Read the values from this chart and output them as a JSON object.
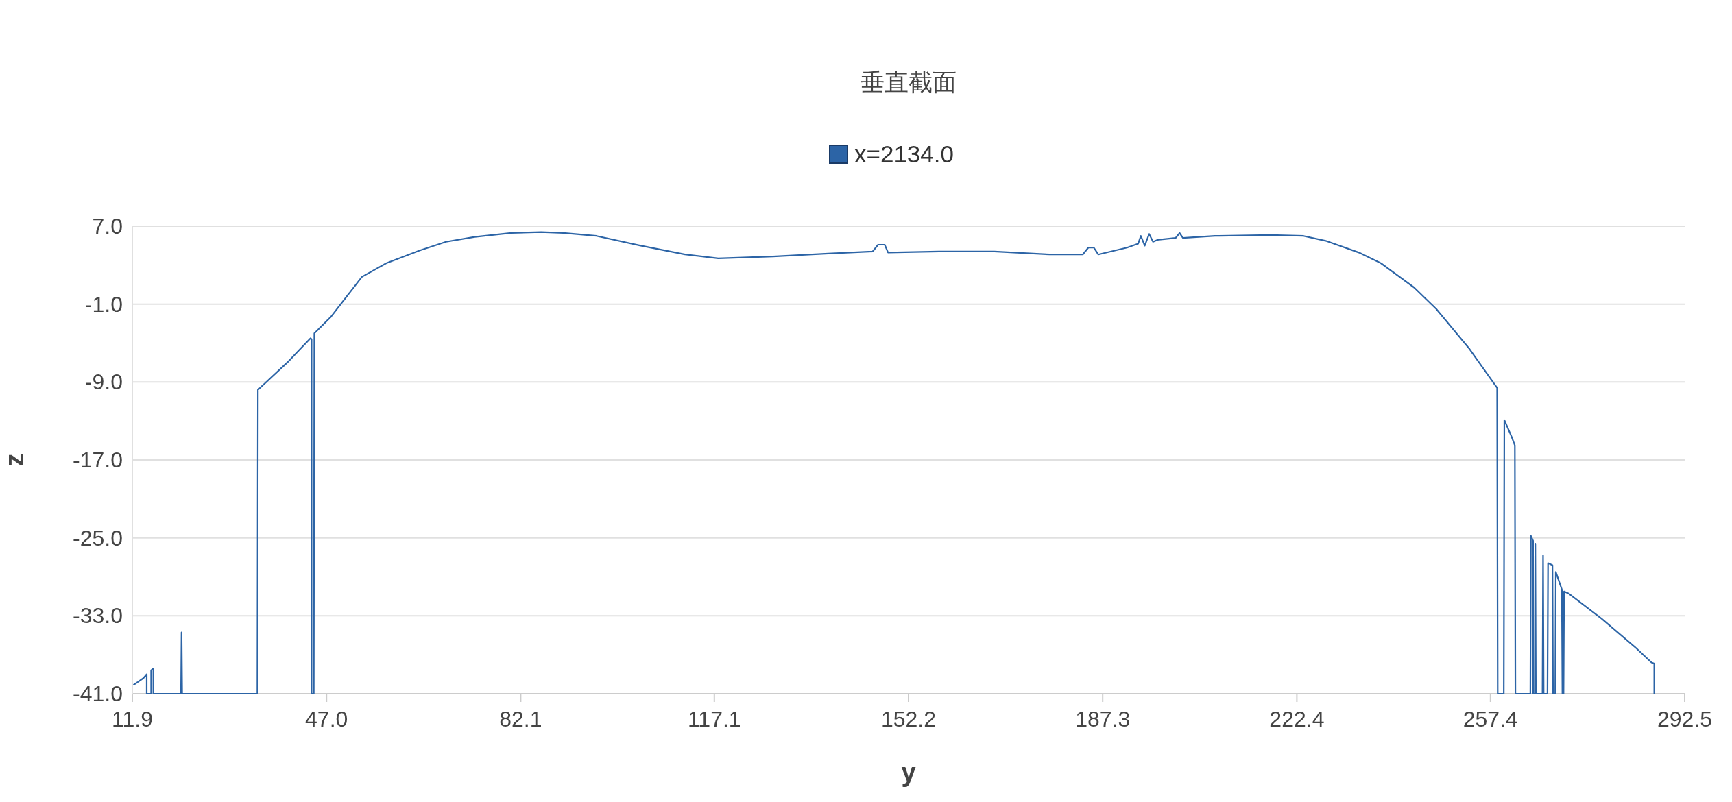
{
  "chart_data": {
    "type": "line",
    "title": "垂直截面",
    "xlabel": "y",
    "ylabel": "z",
    "legend": "top",
    "grid": "y",
    "xlim": [
      11.9,
      292.5
    ],
    "xticks": [
      11.9,
      {
        "value": 47,
        "label": "47.0"
      },
      82.1,
      117.1,
      152.2,
      187.3,
      222.4,
      257.4,
      292.5
    ],
    "ylim": [
      -41,
      7
    ],
    "yticks": [
      {
        "value": 7,
        "label": "7.0"
      },
      {
        "value": -1,
        "label": "-1.0"
      },
      {
        "value": -9,
        "label": "-9.0"
      },
      {
        "value": -17,
        "label": "-17.0"
      },
      {
        "value": -25,
        "label": "-25.0"
      },
      {
        "value": -33,
        "label": "-33.0"
      },
      {
        "value": -41,
        "label": "-41.0"
      }
    ],
    "series": [
      {
        "name": "x=2134.0",
        "color": "#2c64a6",
        "x": [
          12.1,
          12.9,
          13.9,
          14.5,
          14.5,
          15.3,
          15.3,
          15.7,
          15.7,
          20.7,
          20.8,
          20.9,
          34.5,
          34.6,
          39.9,
          44.1,
          44.3,
          44.3,
          44.7,
          44.8,
          47.8,
          53.4,
          57.8,
          63.8,
          68.6,
          73.8,
          80.4,
          85.8,
          89.8,
          95.8,
          103.8,
          111.8,
          117.8,
          127.7,
          137.7,
          145.7,
          146.7,
          147.9,
          148.5,
          157.7,
          167.7,
          177.7,
          183.7,
          184.7,
          185.7,
          186.5,
          191.7,
          193.7,
          194.2,
          194.9,
          195.7,
          196.4,
          197.2,
          200.5,
          201.2,
          201.8,
          207.6,
          217.6,
          223.6,
          227.6,
          233.6,
          237.6,
          243.6,
          247.6,
          253.6,
          258.6,
          258.7,
          259.8,
          259.9,
          261.2,
          261.8,
          261.9,
          264.6,
          264.7,
          265.1,
          265.1,
          265.4,
          265.5,
          265.6,
          266.8,
          266.9,
          267.0,
          267.7,
          267.8,
          268.6,
          268.7,
          269.1,
          269.2,
          270.3,
          270.4,
          270.6,
          270.7,
          271.5,
          277.5,
          283.5,
          286.5,
          287.0,
          287.0
        ],
        "values": [
          -40.1,
          -39.8,
          -39.4,
          -39.0,
          -41,
          -41,
          -38.6,
          -38.4,
          -41,
          -41,
          -34.7,
          -41,
          -41,
          -9.8,
          -7.0,
          -4.5,
          -4.6,
          -41,
          -41,
          -4.0,
          -2.3,
          1.8,
          3.2,
          4.5,
          5.4,
          5.9,
          6.3,
          6.4,
          6.3,
          6.0,
          5.0,
          4.1,
          3.7,
          3.9,
          4.2,
          4.4,
          5.1,
          5.1,
          4.3,
          4.4,
          4.4,
          4.1,
          4.1,
          4.8,
          4.8,
          4.1,
          4.8,
          5.2,
          6.0,
          5.0,
          6.2,
          5.4,
          5.6,
          5.8,
          6.3,
          5.8,
          6.0,
          6.1,
          6.0,
          5.5,
          4.3,
          3.2,
          0.7,
          -1.5,
          -5.6,
          -9.6,
          -41,
          -41,
          -12.9,
          -14.6,
          -15.5,
          -41,
          -41,
          -24.8,
          -25.3,
          -41,
          -41,
          -25.6,
          -41,
          -41,
          -26.8,
          -41,
          -41,
          -27.6,
          -27.8,
          -41,
          -41,
          -28.5,
          -30.3,
          -41,
          -41,
          -30.5,
          -30.7,
          -33.3,
          -36.2,
          -37.8,
          -37.9,
          -41
        ]
      }
    ]
  }
}
